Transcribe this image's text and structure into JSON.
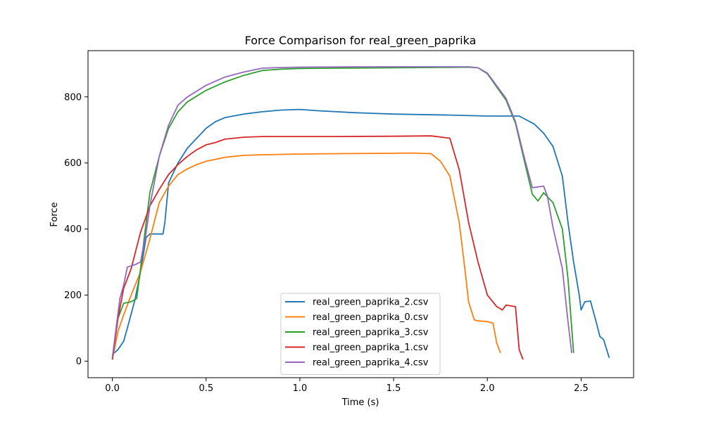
{
  "chart_data": {
    "type": "line",
    "title": "Force Comparison for real_green_paprika",
    "xlabel": "Time (s)",
    "ylabel": "Force",
    "xlim": [
      -0.13,
      2.78
    ],
    "ylim": [
      -50,
      940
    ],
    "xticks": [
      0.0,
      0.5,
      1.0,
      1.5,
      2.0,
      2.5
    ],
    "xtick_labels": [
      "0.0",
      "0.5",
      "1.0",
      "1.5",
      "2.0",
      "2.5"
    ],
    "yticks": [
      0,
      200,
      400,
      600,
      800
    ],
    "ytick_labels": [
      "0",
      "200",
      "400",
      "600",
      "800"
    ],
    "grid": false,
    "legend_position": "lower-center",
    "series": [
      {
        "name": "real_green_paprika_2.csv",
        "color": "#1f77b4",
        "x": [
          0.0,
          0.03,
          0.06,
          0.08,
          0.12,
          0.15,
          0.18,
          0.2,
          0.23,
          0.27,
          0.28,
          0.3,
          0.35,
          0.4,
          0.45,
          0.5,
          0.55,
          0.6,
          0.7,
          0.8,
          0.9,
          1.0,
          1.1,
          1.3,
          1.5,
          1.8,
          2.0,
          2.1,
          2.17,
          2.25,
          2.3,
          2.35,
          2.4,
          2.43,
          2.46,
          2.49,
          2.5,
          2.52,
          2.55,
          2.58,
          2.6,
          2.62,
          2.65
        ],
        "y": [
          20,
          35,
          60,
          100,
          185,
          270,
          375,
          385,
          385,
          385,
          420,
          540,
          600,
          645,
          675,
          705,
          725,
          737,
          748,
          755,
          760,
          762,
          758,
          752,
          748,
          745,
          742,
          742,
          742,
          718,
          690,
          650,
          560,
          420,
          300,
          200,
          155,
          180,
          182,
          120,
          75,
          65,
          10
        ]
      },
      {
        "name": "real_green_paprika_0.csv",
        "color": "#ff7f0e",
        "x": [
          0.0,
          0.03,
          0.06,
          0.1,
          0.15,
          0.2,
          0.25,
          0.3,
          0.35,
          0.4,
          0.45,
          0.5,
          0.6,
          0.7,
          0.8,
          1.0,
          1.2,
          1.4,
          1.6,
          1.7,
          1.75,
          1.8,
          1.85,
          1.88,
          1.9,
          1.93,
          1.95,
          2.0,
          2.03,
          2.05,
          2.07
        ],
        "y": [
          5,
          90,
          140,
          200,
          270,
          370,
          480,
          530,
          565,
          582,
          595,
          605,
          617,
          623,
          625,
          627,
          628,
          629,
          630,
          628,
          605,
          560,
          420,
          280,
          180,
          125,
          122,
          120,
          115,
          55,
          25
        ]
      },
      {
        "name": "real_green_paprika_3.csv",
        "color": "#2ca02c",
        "x": [
          0.0,
          0.03,
          0.06,
          0.1,
          0.13,
          0.15,
          0.18,
          0.2,
          0.25,
          0.3,
          0.35,
          0.4,
          0.5,
          0.6,
          0.7,
          0.8,
          0.9,
          1.0,
          1.2,
          1.5,
          1.7,
          1.9,
          1.95,
          2.0,
          2.1,
          2.15,
          2.2,
          2.24,
          2.27,
          2.3,
          2.35,
          2.4,
          2.43,
          2.45,
          2.46
        ],
        "y": [
          10,
          130,
          175,
          180,
          190,
          280,
          420,
          510,
          620,
          705,
          755,
          785,
          820,
          845,
          865,
          880,
          884,
          886,
          887,
          888,
          889,
          890,
          888,
          870,
          790,
          720,
          600,
          505,
          485,
          510,
          480,
          400,
          250,
          100,
          25
        ]
      },
      {
        "name": "real_green_paprika_1.csv",
        "color": "#d62728",
        "x": [
          0.0,
          0.03,
          0.06,
          0.1,
          0.15,
          0.2,
          0.25,
          0.3,
          0.35,
          0.4,
          0.45,
          0.5,
          0.55,
          0.6,
          0.7,
          0.8,
          1.0,
          1.2,
          1.5,
          1.7,
          1.8,
          1.85,
          1.9,
          1.95,
          2.0,
          2.05,
          2.08,
          2.1,
          2.15,
          2.17,
          2.19
        ],
        "y": [
          5,
          130,
          220,
          280,
          390,
          470,
          520,
          565,
          595,
          620,
          640,
          655,
          662,
          672,
          678,
          680,
          680,
          680,
          681,
          682,
          675,
          580,
          420,
          300,
          200,
          165,
          155,
          170,
          165,
          35,
          5
        ]
      },
      {
        "name": "real_green_paprika_4.csv",
        "color": "#9467bd",
        "x": [
          0.0,
          0.02,
          0.04,
          0.06,
          0.08,
          0.12,
          0.15,
          0.18,
          0.2,
          0.25,
          0.3,
          0.35,
          0.4,
          0.5,
          0.6,
          0.7,
          0.8,
          0.9,
          1.0,
          1.3,
          1.6,
          1.9,
          1.95,
          2.0,
          2.1,
          2.15,
          2.2,
          2.24,
          2.3,
          2.32,
          2.35,
          2.4,
          2.43,
          2.45
        ],
        "y": [
          10,
          100,
          190,
          230,
          285,
          292,
          300,
          390,
          470,
          620,
          715,
          775,
          800,
          835,
          860,
          875,
          887,
          889,
          890,
          891,
          891,
          891,
          888,
          872,
          795,
          725,
          610,
          525,
          530,
          500,
          405,
          280,
          120,
          25
        ]
      }
    ]
  }
}
